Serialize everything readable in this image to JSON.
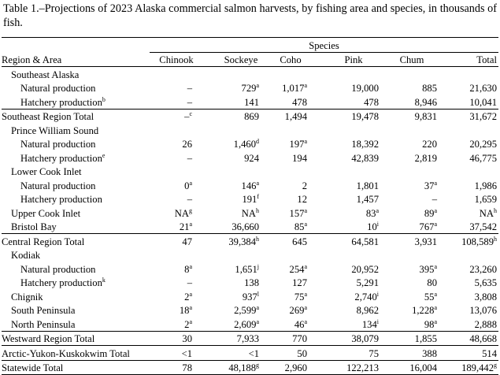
{
  "caption": "Table 1.–Projections of 2023 Alaska commercial salmon harvests, by fishing area and species, in thousands of fish.",
  "header": {
    "species_group": "Species",
    "region_area": "Region & Area",
    "columns": [
      "Chinook",
      "Sockeye",
      "Coho",
      "Pink",
      "Chum",
      "Total"
    ]
  },
  "rows": [
    {
      "label": "Southeast Alaska",
      "indent": 1,
      "style": "group",
      "cells": []
    },
    {
      "label": "Natural production",
      "indent": 2,
      "style": "data",
      "cells": [
        [
          "–",
          ""
        ],
        [
          "729",
          "a"
        ],
        [
          "1,017",
          "a"
        ],
        [
          "19,000",
          ""
        ],
        [
          "885",
          ""
        ],
        [
          "21,630",
          ""
        ]
      ]
    },
    {
      "label": "Hatchery production",
      "label_sup": "b",
      "indent": 2,
      "style": "data",
      "cells": [
        [
          "–",
          ""
        ],
        [
          "141",
          ""
        ],
        [
          "478",
          ""
        ],
        [
          "478",
          ""
        ],
        [
          "8,946",
          ""
        ],
        [
          "10,041",
          ""
        ]
      ]
    },
    {
      "label": "Southeast Region Total",
      "indent": 0,
      "style": "total",
      "cells": [
        [
          "–",
          "c"
        ],
        [
          "869",
          ""
        ],
        [
          "1,494",
          ""
        ],
        [
          "19,478",
          ""
        ],
        [
          "9,831",
          ""
        ],
        [
          "31,672",
          ""
        ]
      ]
    },
    {
      "label": "Prince William Sound",
      "indent": 1,
      "style": "group",
      "cells": []
    },
    {
      "label": "Natural production",
      "indent": 2,
      "style": "data",
      "cells": [
        [
          "26",
          ""
        ],
        [
          "1,460",
          "d"
        ],
        [
          "197",
          "a"
        ],
        [
          "18,392",
          ""
        ],
        [
          "220",
          ""
        ],
        [
          "20,295",
          ""
        ]
      ]
    },
    {
      "label": "Hatchery production",
      "label_sup": "e",
      "indent": 2,
      "style": "data",
      "cells": [
        [
          "–",
          ""
        ],
        [
          "924",
          ""
        ],
        [
          "194",
          ""
        ],
        [
          "42,839",
          ""
        ],
        [
          "2,819",
          ""
        ],
        [
          "46,775",
          ""
        ]
      ]
    },
    {
      "label": "Lower Cook Inlet",
      "indent": 1,
      "style": "group",
      "cells": []
    },
    {
      "label": "Natural production",
      "indent": 2,
      "style": "data",
      "cells": [
        [
          "0",
          "a"
        ],
        [
          "146",
          "a"
        ],
        [
          "2",
          ""
        ],
        [
          "1,801",
          ""
        ],
        [
          "37",
          "a"
        ],
        [
          "1,986",
          ""
        ]
      ]
    },
    {
      "label": "Hatchery production",
      "indent": 2,
      "style": "data",
      "cells": [
        [
          "–",
          ""
        ],
        [
          "191",
          "f"
        ],
        [
          "12",
          ""
        ],
        [
          "1,457",
          ""
        ],
        [
          "–",
          ""
        ],
        [
          "1,659",
          ""
        ]
      ]
    },
    {
      "label": "Upper Cook Inlet",
      "indent": 1,
      "style": "data",
      "cells": [
        [
          "NA",
          "g"
        ],
        [
          "NA",
          "h"
        ],
        [
          "157",
          "a"
        ],
        [
          "83",
          "a"
        ],
        [
          "89",
          "a"
        ],
        [
          "NA",
          "h"
        ]
      ]
    },
    {
      "label": "Bristol Bay",
      "indent": 1,
      "style": "data",
      "cells": [
        [
          "21",
          "a"
        ],
        [
          "36,660",
          ""
        ],
        [
          "85",
          "a"
        ],
        [
          "10",
          "i"
        ],
        [
          "767",
          "a"
        ],
        [
          "37,542",
          ""
        ]
      ]
    },
    {
      "label": "Central Region Total",
      "indent": 0,
      "style": "total",
      "cells": [
        [
          "47",
          ""
        ],
        [
          "39,384",
          "h"
        ],
        [
          "645",
          ""
        ],
        [
          "64,581",
          ""
        ],
        [
          "3,931",
          ""
        ],
        [
          "108,589",
          "h"
        ]
      ]
    },
    {
      "label": "Kodiak",
      "indent": 1,
      "style": "group",
      "cells": []
    },
    {
      "label": "Natural production",
      "indent": 2,
      "style": "data",
      "cells": [
        [
          "8",
          "a"
        ],
        [
          "1,651",
          "j"
        ],
        [
          "254",
          "a"
        ],
        [
          "20,952",
          ""
        ],
        [
          "395",
          "a"
        ],
        [
          "23,260",
          ""
        ]
      ]
    },
    {
      "label": "Hatchery production",
      "label_sup": "k",
      "indent": 2,
      "style": "data",
      "cells": [
        [
          "–",
          ""
        ],
        [
          "138",
          ""
        ],
        [
          "127",
          ""
        ],
        [
          "5,291",
          ""
        ],
        [
          "80",
          ""
        ],
        [
          "5,635",
          ""
        ]
      ]
    },
    {
      "label": "Chignik",
      "indent": 1,
      "style": "data",
      "cells": [
        [
          "2",
          "a"
        ],
        [
          "937",
          "l"
        ],
        [
          "75",
          "a"
        ],
        [
          "2,740",
          "i"
        ],
        [
          "55",
          "a"
        ],
        [
          "3,808",
          ""
        ]
      ]
    },
    {
      "label": "South Peninsula",
      "indent": 1,
      "style": "data",
      "cells": [
        [
          "18",
          "a"
        ],
        [
          "2,599",
          "a"
        ],
        [
          "269",
          "a"
        ],
        [
          "8,962",
          ""
        ],
        [
          "1,228",
          "a"
        ],
        [
          "13,076",
          ""
        ]
      ]
    },
    {
      "label": "North Peninsula",
      "indent": 1,
      "style": "data",
      "cells": [
        [
          "2",
          "a"
        ],
        [
          "2,609",
          "a"
        ],
        [
          "46",
          "a"
        ],
        [
          "134",
          "i"
        ],
        [
          "98",
          "a"
        ],
        [
          "2,888",
          ""
        ]
      ]
    },
    {
      "label": "Westward Region Total",
      "indent": 0,
      "style": "total",
      "cells": [
        [
          "30",
          ""
        ],
        [
          "7,933",
          ""
        ],
        [
          "770",
          ""
        ],
        [
          "38,079",
          ""
        ],
        [
          "1,855",
          ""
        ],
        [
          "48,668",
          ""
        ]
      ]
    },
    {
      "label": "Arctic-Yukon-Kuskokwim Total",
      "indent": 0,
      "style": "total",
      "cells": [
        [
          "<1",
          ""
        ],
        [
          "<1",
          ""
        ],
        [
          "50",
          ""
        ],
        [
          "75",
          ""
        ],
        [
          "388",
          ""
        ],
        [
          "514",
          ""
        ]
      ]
    },
    {
      "label": "Statewide Total",
      "indent": 0,
      "style": "total",
      "cells": [
        [
          "78",
          ""
        ],
        [
          "48,188",
          "g"
        ],
        [
          "2,960",
          ""
        ],
        [
          "122,213",
          ""
        ],
        [
          "16,004",
          ""
        ],
        [
          "189,442",
          "g"
        ]
      ]
    }
  ]
}
